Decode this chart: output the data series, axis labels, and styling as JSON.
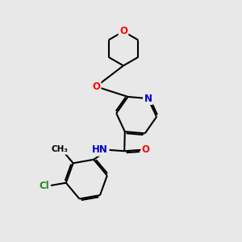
{
  "background_color": "#e8e8e8",
  "bond_color": "#000000",
  "bond_width": 1.5,
  "atom_colors": {
    "O": "#ff0000",
    "N": "#0000cc",
    "Cl": "#228b22",
    "C": "#000000",
    "H": "#000000"
  },
  "font_size_atoms": 8.5
}
